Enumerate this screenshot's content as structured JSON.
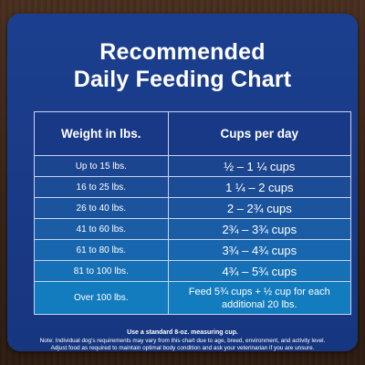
{
  "title": {
    "line1": "Recommended",
    "line2": "Daily Feeding Chart"
  },
  "table": {
    "headers": [
      "Weight in lbs.",
      "Cups per day"
    ],
    "rows": [
      {
        "weight": "Up to 15 lbs.",
        "cups": "½ – 1 ¼ cups"
      },
      {
        "weight": "16 to 25 lbs.",
        "cups": "1 ¼ – 2 cups"
      },
      {
        "weight": "26 to 40 lbs.",
        "cups": "2 – 2¾ cups"
      },
      {
        "weight": "41 to 60 lbs.",
        "cups": "2¾ – 3¾ cups"
      },
      {
        "weight": "61 to 80 lbs.",
        "cups": "3¾ – 4¾ cups"
      },
      {
        "weight": "81 to 100 lbs.",
        "cups": "4¾ – 5¾ cups"
      },
      {
        "weight": "Over 100 lbs.",
        "cups": "Feed 5¾ cups + ½ cup for each additional 20 lbs."
      }
    ]
  },
  "notes": {
    "measure": "Use a standard 8-oz. measuring cup.",
    "line2": "Note: Individual dog's requirements may vary from this chart due to age, breed, environment, and activity level.",
    "line3": "Adjust food as required to maintain optimal body condition and ask your veterinarian if you are unsure."
  },
  "colors": {
    "card": "#1b3f8e",
    "row_gradient_start": "#1c458f",
    "row_gradient_end": "#127cbe",
    "text": "#ffffff",
    "background_wood": "#3b2618"
  }
}
